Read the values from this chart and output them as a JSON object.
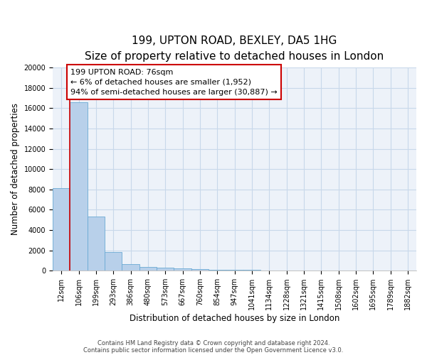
{
  "title_line1": "199, UPTON ROAD, BEXLEY, DA5 1HG",
  "title_line2": "Size of property relative to detached houses in London",
  "xlabel": "Distribution of detached houses by size in London",
  "ylabel": "Number of detached properties",
  "bar_values": [
    8100,
    16600,
    5300,
    1850,
    650,
    350,
    270,
    200,
    170,
    100,
    80,
    60,
    50,
    40,
    30,
    20,
    15,
    10,
    8,
    5,
    3
  ],
  "bar_labels": [
    "12sqm",
    "106sqm",
    "199sqm",
    "293sqm",
    "386sqm",
    "480sqm",
    "573sqm",
    "667sqm",
    "760sqm",
    "854sqm",
    "947sqm",
    "1041sqm",
    "1134sqm",
    "1228sqm",
    "1321sqm",
    "1415sqm",
    "1508sqm",
    "1602sqm",
    "1695sqm",
    "1789sqm",
    "1882sqm"
  ],
  "bar_color": "#b8d0ea",
  "bar_edgecolor": "#6aaad4",
  "red_line_x": 0.5,
  "ylim": [
    0,
    20000
  ],
  "yticks": [
    0,
    2000,
    4000,
    6000,
    8000,
    10000,
    12000,
    14000,
    16000,
    18000,
    20000
  ],
  "annotation_text_line1": "199 UPTON ROAD: 76sqm",
  "annotation_text_line2": "← 6% of detached houses are smaller (1,952)",
  "annotation_text_line3": "94% of semi-detached houses are larger (30,887) →",
  "annotation_box_edgecolor": "#cc0000",
  "grid_color": "#c8d8ea",
  "bg_color": "#edf2f9",
  "footer_line1": "Contains HM Land Registry data © Crown copyright and database right 2024.",
  "footer_line2": "Contains public sector information licensed under the Open Government Licence v3.0.",
  "title_fontsize": 11,
  "subtitle_fontsize": 9.5,
  "axis_label_fontsize": 8.5,
  "tick_fontsize": 7,
  "annotation_fontsize": 8
}
